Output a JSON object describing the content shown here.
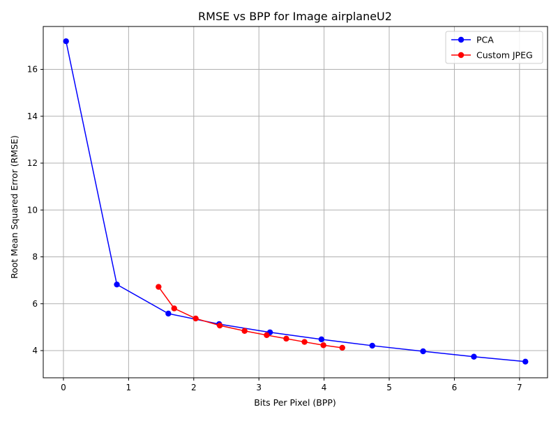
{
  "chart_data": {
    "type": "line",
    "title": "RMSE vs BPP for Image airplaneU2",
    "xlabel": "Bits Per Pixel (BPP)",
    "ylabel": "Root Mean Squared Error (RMSE)",
    "xlim": [
      -0.31,
      7.43
    ],
    "ylim": [
      2.84,
      17.83
    ],
    "xticks": [
      0,
      1,
      2,
      3,
      4,
      5,
      6,
      7
    ],
    "yticks": [
      4,
      6,
      8,
      10,
      12,
      14,
      16
    ],
    "grid": true,
    "legend_position": "top-right",
    "series": [
      {
        "name": "PCA",
        "color": "#0000ff",
        "x": [
          0.04,
          0.82,
          1.61,
          2.39,
          3.17,
          3.96,
          4.74,
          5.52,
          6.3,
          7.09
        ],
        "y": [
          17.2,
          6.82,
          5.58,
          5.13,
          4.78,
          4.48,
          4.21,
          3.97,
          3.74,
          3.53
        ]
      },
      {
        "name": "Custom JPEG",
        "color": "#ff0000",
        "x": [
          1.46,
          1.7,
          2.03,
          2.4,
          2.78,
          3.12,
          3.42,
          3.7,
          3.99,
          4.28
        ],
        "y": [
          6.72,
          5.8,
          5.37,
          5.07,
          4.84,
          4.66,
          4.51,
          4.37,
          4.23,
          4.12
        ]
      }
    ]
  }
}
